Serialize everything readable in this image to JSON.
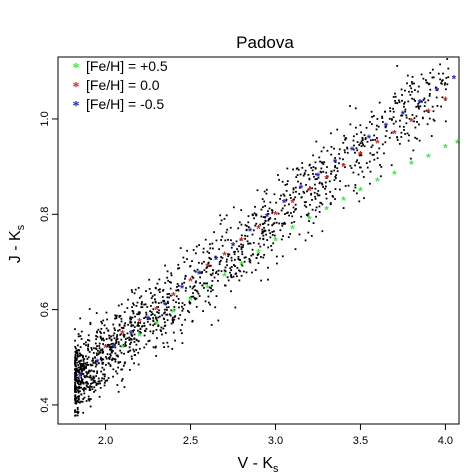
{
  "chart_data": {
    "type": "scatter",
    "title": "Padova",
    "xlabel": {
      "main": "V - K",
      "sub": "s"
    },
    "ylabel": {
      "main": "J - K",
      "sub": "s"
    },
    "xlim": [
      1.72,
      4.08
    ],
    "ylim": [
      0.36,
      1.13
    ],
    "xticks": [
      2.0,
      2.5,
      3.0,
      3.5,
      4.0
    ],
    "xtick_labels": [
      "2.0",
      "2.5",
      "3.0",
      "3.5",
      "4.0"
    ],
    "yticks": [
      0.4,
      0.6,
      0.8,
      1.0
    ],
    "ytick_labels": [
      "0.4",
      "0.6",
      "0.8",
      "1.0"
    ],
    "grid": false,
    "legend_position": "top-left",
    "series": [
      {
        "name": "[Fe/H] = +0.5",
        "color": "#33ee33",
        "marker": "asterisk",
        "x": [
          2.1,
          2.2,
          2.3,
          2.4,
          2.5,
          2.6,
          2.7,
          2.8,
          2.9,
          3.0,
          3.1,
          3.2,
          3.3,
          3.4,
          3.5,
          3.6,
          3.7,
          3.8,
          3.9,
          4.0,
          4.07
        ],
        "y": [
          0.52,
          0.545,
          0.57,
          0.595,
          0.62,
          0.645,
          0.67,
          0.695,
          0.72,
          0.745,
          0.77,
          0.79,
          0.81,
          0.83,
          0.85,
          0.87,
          0.885,
          0.905,
          0.92,
          0.94,
          0.95
        ]
      },
      {
        "name": "[Fe/H] = 0.0",
        "color": "#dd2222",
        "marker": "asterisk",
        "x": [
          2.0,
          2.1,
          2.2,
          2.3,
          2.4,
          2.5,
          2.6,
          2.7,
          2.8,
          2.9,
          3.0,
          3.1,
          3.2,
          3.3,
          3.4,
          3.5,
          3.6,
          3.7,
          3.8,
          3.9,
          4.0
        ],
        "y": [
          0.52,
          0.55,
          0.575,
          0.6,
          0.63,
          0.66,
          0.69,
          0.715,
          0.745,
          0.77,
          0.8,
          0.825,
          0.85,
          0.875,
          0.9,
          0.925,
          0.95,
          0.97,
          0.995,
          1.015,
          1.04
        ]
      },
      {
        "name": "[Fe/H] = -0.5",
        "color": "#2222cc",
        "marker": "asterisk",
        "x": [
          1.85,
          1.95,
          2.05,
          2.15,
          2.25,
          2.35,
          2.45,
          2.55,
          2.65,
          2.75,
          2.85,
          2.95,
          3.05,
          3.15,
          3.25,
          3.35,
          3.45,
          3.55,
          3.65,
          3.75,
          3.85,
          3.95,
          4.05
        ],
        "y": [
          0.46,
          0.49,
          0.52,
          0.55,
          0.58,
          0.61,
          0.645,
          0.675,
          0.705,
          0.735,
          0.765,
          0.795,
          0.825,
          0.855,
          0.88,
          0.91,
          0.935,
          0.96,
          0.985,
          1.01,
          1.035,
          1.06,
          1.085
        ]
      }
    ],
    "background_points": {
      "name": "",
      "color": "#000000",
      "count": 1600,
      "trend": {
        "x_range": [
          1.82,
          4.02
        ],
        "y_at_x_min": 0.45,
        "slope": 0.288
      },
      "scatter": 0.04
    }
  }
}
